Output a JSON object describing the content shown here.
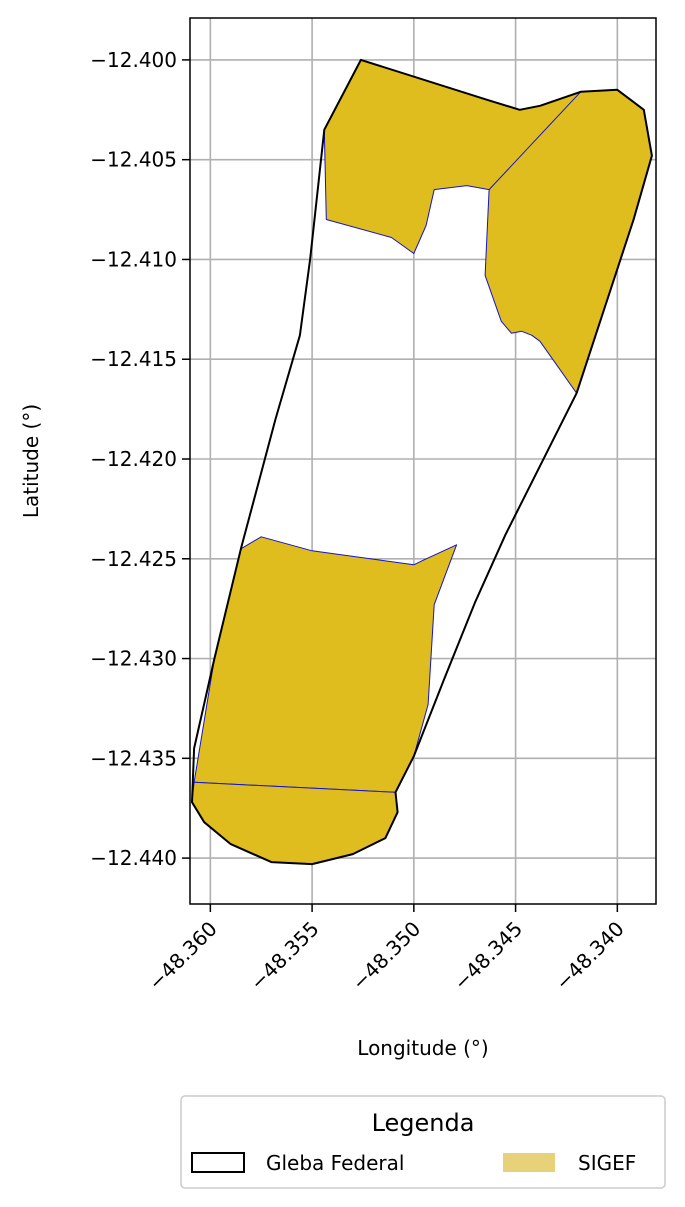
{
  "chart_data": {
    "type": "map",
    "xlabel": "Longitude (°)",
    "ylabel": "Latitude (°)",
    "xlim": [
      -48.361,
      -48.3381
    ],
    "ylim": [
      -12.4423,
      -12.3979
    ],
    "grid": true,
    "x_ticks": [
      -48.36,
      -48.355,
      -48.35,
      -48.345,
      -48.34
    ],
    "x_tick_labels": [
      "−48.360",
      "−48.355",
      "−48.350",
      "−48.345",
      "−48.340"
    ],
    "y_ticks": [
      -12.4,
      -12.405,
      -12.41,
      -12.415,
      -12.42,
      -12.425,
      -12.43,
      -12.435,
      -12.44
    ],
    "y_tick_labels": [
      "−12.400",
      "−12.405",
      "−12.410",
      "−12.415",
      "−12.420",
      "−12.425",
      "−12.430",
      "−12.435",
      "−12.440"
    ],
    "legend": {
      "title": "Legenda",
      "placement": "bottom-center",
      "entries": [
        {
          "label": "Gleba Federal",
          "style": "outline",
          "color": "#000000"
        },
        {
          "label": "SIGEF",
          "style": "fill",
          "color": "#e8d279"
        }
      ]
    },
    "colors": {
      "sigef_fill": "#dfbd1f",
      "sigef_edge": "#1414c8",
      "gleba_edge": "#000000",
      "grid": "#b0b0b0"
    },
    "gleba_federal": [
      [
        -48.3526,
        -12.4
      ],
      [
        -48.3464,
        -12.402
      ],
      [
        -48.3448,
        -12.4025
      ],
      [
        -48.3438,
        -12.4023
      ],
      [
        -48.3418,
        -12.4016
      ],
      [
        -48.34,
        -12.4015
      ],
      [
        -48.3387,
        -12.4025
      ],
      [
        -48.3383,
        -12.4048
      ],
      [
        -48.3392,
        -12.408
      ],
      [
        -48.342,
        -12.4167
      ],
      [
        -48.3455,
        -12.4238
      ],
      [
        -48.347,
        -12.4272
      ],
      [
        -48.3485,
        -12.431
      ],
      [
        -48.35,
        -12.4349
      ],
      [
        -48.3509,
        -12.4367
      ],
      [
        -48.3508,
        -12.4377
      ],
      [
        -48.3514,
        -12.439
      ],
      [
        -48.353,
        -12.4398
      ],
      [
        -48.355,
        -12.4403
      ],
      [
        -48.357,
        -12.4402
      ],
      [
        -48.359,
        -12.4393
      ],
      [
        -48.3603,
        -12.4382
      ],
      [
        -48.3609,
        -12.4372
      ],
      [
        -48.3608,
        -12.4345
      ],
      [
        -48.3598,
        -12.43
      ],
      [
        -48.3585,
        -12.4245
      ],
      [
        -48.3568,
        -12.418
      ],
      [
        -48.3556,
        -12.4138
      ],
      [
        -48.3551,
        -12.41
      ],
      [
        -48.3544,
        -12.4035
      ]
    ],
    "sigef": [
      [
        [
          -48.3526,
          -12.4
        ],
        [
          -48.3464,
          -12.402
        ],
        [
          -48.3448,
          -12.4025
        ],
        [
          -48.3438,
          -12.4023
        ],
        [
          -48.3418,
          -12.4016
        ],
        [
          -48.34,
          -12.4015
        ],
        [
          -48.3387,
          -12.4025
        ],
        [
          -48.3383,
          -12.4048
        ],
        [
          -48.3392,
          -12.408
        ],
        [
          -48.342,
          -12.4167
        ],
        [
          -48.3429,
          -12.4154
        ],
        [
          -48.3438,
          -12.4141
        ],
        [
          -48.3442,
          -12.4138
        ],
        [
          -48.3447,
          -12.4136
        ],
        [
          -48.3452,
          -12.4137
        ],
        [
          -48.3457,
          -12.4131
        ],
        [
          -48.3465,
          -12.4108
        ],
        [
          -48.3463,
          -12.4065
        ],
        [
          -48.3474,
          -12.4063
        ],
        [
          -48.349,
          -12.4065
        ],
        [
          -48.3494,
          -12.4083
        ],
        [
          -48.35,
          -12.4097
        ],
        [
          -48.3511,
          -12.4089
        ],
        [
          -48.3543,
          -12.408
        ],
        [
          -48.3544,
          -12.4035
        ]
      ],
      [
        [
          -48.3575,
          -12.4239
        ],
        [
          -48.355,
          -12.4246
        ],
        [
          -48.35,
          -12.4253
        ],
        [
          -48.3496,
          -12.4251
        ],
        [
          -48.3479,
          -12.4243
        ],
        [
          -48.349,
          -12.4273
        ],
        [
          -48.3493,
          -12.4323
        ],
        [
          -48.35,
          -12.4349
        ],
        [
          -48.3509,
          -12.4367
        ],
        [
          -48.3608,
          -12.4362
        ],
        [
          -48.3598,
          -12.43
        ],
        [
          -48.3585,
          -12.4245
        ]
      ],
      [
        [
          -48.3608,
          -12.4362
        ],
        [
          -48.3509,
          -12.4367
        ],
        [
          -48.3508,
          -12.4377
        ],
        [
          -48.3514,
          -12.439
        ],
        [
          -48.353,
          -12.4398
        ],
        [
          -48.355,
          -12.4403
        ],
        [
          -48.357,
          -12.4402
        ],
        [
          -48.359,
          -12.4393
        ],
        [
          -48.3603,
          -12.4382
        ],
        [
          -48.3609,
          -12.4372
        ]
      ]
    ],
    "sigef_internal_boundaries": [
      [
        [
          -48.3418,
          -12.4016
        ],
        [
          -48.3463,
          -12.4065
        ]
      ]
    ]
  }
}
